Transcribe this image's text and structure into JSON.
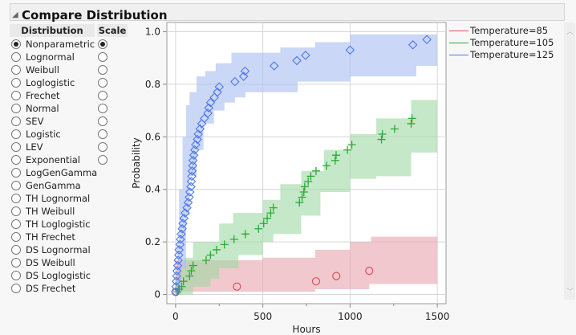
{
  "title": "Compare Distribution",
  "table": {
    "headers": [
      "Distribution",
      "Scale"
    ],
    "rows": [
      {
        "label": "Nonparametric",
        "selected": true,
        "scale": true,
        "scale_selected": true
      },
      {
        "label": "Lognormal",
        "selected": false,
        "scale": true,
        "scale_selected": false
      },
      {
        "label": "Weibull",
        "selected": false,
        "scale": true,
        "scale_selected": false
      },
      {
        "label": "Loglogistic",
        "selected": false,
        "scale": true,
        "scale_selected": false
      },
      {
        "label": "Frechet",
        "selected": false,
        "scale": true,
        "scale_selected": false
      },
      {
        "label": "Normal",
        "selected": false,
        "scale": true,
        "scale_selected": false
      },
      {
        "label": "SEV",
        "selected": false,
        "scale": true,
        "scale_selected": false
      },
      {
        "label": "Logistic",
        "selected": false,
        "scale": true,
        "scale_selected": false
      },
      {
        "label": "LEV",
        "selected": false,
        "scale": true,
        "scale_selected": false
      },
      {
        "label": "Exponential",
        "selected": false,
        "scale": true,
        "scale_selected": false
      },
      {
        "label": "LogGenGamma",
        "selected": false,
        "scale": false
      },
      {
        "label": "GenGamma",
        "selected": false,
        "scale": false
      },
      {
        "label": "TH Lognormal",
        "selected": false,
        "scale": false
      },
      {
        "label": "TH Weibull",
        "selected": false,
        "scale": false
      },
      {
        "label": "TH Loglogistic",
        "selected": false,
        "scale": false
      },
      {
        "label": "TH Frechet",
        "selected": false,
        "scale": false
      },
      {
        "label": "DS Lognormal",
        "selected": false,
        "scale": false
      },
      {
        "label": "DS Weibull",
        "selected": false,
        "scale": false
      },
      {
        "label": "DS Loglogistic",
        "selected": false,
        "scale": false
      },
      {
        "label": "DS Frechet",
        "selected": false,
        "scale": false
      }
    ]
  },
  "chart_data": {
    "type": "scatter",
    "xlabel": "Hours",
    "ylabel": "Probability",
    "xlim": [
      -50,
      1550
    ],
    "ylim": [
      -0.035,
      1.035
    ],
    "xticks": [
      0,
      500,
      1000,
      1500
    ],
    "yticks": [
      0,
      0.2,
      0.4,
      0.6,
      0.8,
      1.0
    ],
    "ytick_labels": [
      "0",
      "0.2",
      "0.4",
      "0.6",
      "0.8",
      "1.0"
    ],
    "grid": true,
    "legend": "right",
    "series": [
      {
        "name": "Temperature=85",
        "color": "#d9505f",
        "band_color": "#e8a3ab",
        "marker": "circle",
        "points": [
          [
            0,
            0.01
          ],
          [
            352,
            0.03
          ],
          [
            805,
            0.05
          ],
          [
            921,
            0.07
          ],
          [
            1110,
            0.09
          ]
        ],
        "upper": [
          [
            0,
            0.13
          ],
          [
            500,
            0.14
          ],
          [
            800,
            0.17
          ],
          [
            1000,
            0.2
          ],
          [
            1120,
            0.22
          ],
          [
            1500,
            0.22
          ]
        ],
        "lower": [
          [
            0,
            0
          ],
          [
            30,
            0.01
          ],
          [
            350,
            0.01
          ],
          [
            800,
            0.02
          ],
          [
            1110,
            0.04
          ],
          [
            1500,
            0.04
          ]
        ]
      },
      {
        "name": "Temperature=105",
        "color": "#2ea836",
        "band_color": "#9fd8a3",
        "marker": "plus",
        "points": [
          [
            10,
            0.01
          ],
          [
            20,
            0.02
          ],
          [
            35,
            0.03
          ],
          [
            45,
            0.05
          ],
          [
            80,
            0.07
          ],
          [
            90,
            0.09
          ],
          [
            100,
            0.11
          ],
          [
            175,
            0.13
          ],
          [
            200,
            0.15
          ],
          [
            235,
            0.17
          ],
          [
            280,
            0.19
          ],
          [
            335,
            0.21
          ],
          [
            400,
            0.23
          ],
          [
            475,
            0.25
          ],
          [
            505,
            0.27
          ],
          [
            525,
            0.29
          ],
          [
            545,
            0.31
          ],
          [
            560,
            0.33
          ],
          [
            710,
            0.35
          ],
          [
            725,
            0.37
          ],
          [
            735,
            0.39
          ],
          [
            740,
            0.41
          ],
          [
            760,
            0.43
          ],
          [
            775,
            0.45
          ],
          [
            805,
            0.47
          ],
          [
            865,
            0.49
          ],
          [
            915,
            0.51
          ],
          [
            920,
            0.53
          ],
          [
            985,
            0.55
          ],
          [
            1010,
            0.57
          ],
          [
            1180,
            0.59
          ],
          [
            1185,
            0.61
          ],
          [
            1255,
            0.63
          ],
          [
            1350,
            0.65
          ],
          [
            1355,
            0.67
          ]
        ],
        "upper": [
          [
            0,
            0.06
          ],
          [
            20,
            0.1
          ],
          [
            50,
            0.14
          ],
          [
            100,
            0.2
          ],
          [
            250,
            0.27
          ],
          [
            330,
            0.31
          ],
          [
            500,
            0.36
          ],
          [
            600,
            0.42
          ],
          [
            720,
            0.47
          ],
          [
            850,
            0.55
          ],
          [
            1000,
            0.61
          ],
          [
            1150,
            0.67
          ],
          [
            1350,
            0.74
          ],
          [
            1500,
            0.79
          ]
        ],
        "lower": [
          [
            0,
            0
          ],
          [
            100,
            0.03
          ],
          [
            200,
            0.06
          ],
          [
            250,
            0.1
          ],
          [
            360,
            0.15
          ],
          [
            500,
            0.2
          ],
          [
            560,
            0.23
          ],
          [
            720,
            0.3
          ],
          [
            830,
            0.39
          ],
          [
            1000,
            0.44
          ],
          [
            1150,
            0.45
          ],
          [
            1350,
            0.54
          ],
          [
            1500,
            0.54
          ]
        ]
      },
      {
        "name": "Temperature=125",
        "color": "#4f78e8",
        "band_color": "#a9bdf0",
        "marker": "diamond",
        "points": [
          [
            0,
            0.01
          ],
          [
            2,
            0.03
          ],
          [
            4,
            0.05
          ],
          [
            6,
            0.07
          ],
          [
            8,
            0.09
          ],
          [
            12,
            0.11
          ],
          [
            15,
            0.13
          ],
          [
            18,
            0.15
          ],
          [
            20,
            0.17
          ],
          [
            25,
            0.19
          ],
          [
            28,
            0.21
          ],
          [
            32,
            0.23
          ],
          [
            38,
            0.25
          ],
          [
            42,
            0.27
          ],
          [
            48,
            0.29
          ],
          [
            55,
            0.31
          ],
          [
            65,
            0.33
          ],
          [
            72,
            0.35
          ],
          [
            78,
            0.37
          ],
          [
            82,
            0.39
          ],
          [
            88,
            0.41
          ],
          [
            90,
            0.43
          ],
          [
            93,
            0.45
          ],
          [
            95,
            0.47
          ],
          [
            98,
            0.49
          ],
          [
            100,
            0.51
          ],
          [
            105,
            0.53
          ],
          [
            110,
            0.55
          ],
          [
            115,
            0.57
          ],
          [
            125,
            0.59
          ],
          [
            130,
            0.61
          ],
          [
            140,
            0.63
          ],
          [
            150,
            0.65
          ],
          [
            165,
            0.67
          ],
          [
            185,
            0.69
          ],
          [
            190,
            0.71
          ],
          [
            200,
            0.73
          ],
          [
            222,
            0.75
          ],
          [
            240,
            0.77
          ],
          [
            250,
            0.79
          ],
          [
            340,
            0.81
          ],
          [
            390,
            0.83
          ],
          [
            398,
            0.85
          ],
          [
            565,
            0.87
          ],
          [
            695,
            0.89
          ],
          [
            745,
            0.91
          ],
          [
            1000,
            0.93
          ],
          [
            1360,
            0.95
          ],
          [
            1440,
            0.97
          ]
        ],
        "upper": [
          [
            0,
            0.05
          ],
          [
            10,
            0.2
          ],
          [
            20,
            0.4
          ],
          [
            40,
            0.6
          ],
          [
            60,
            0.72
          ],
          [
            80,
            0.77
          ],
          [
            120,
            0.83
          ],
          [
            170,
            0.85
          ],
          [
            230,
            0.88
          ],
          [
            320,
            0.92
          ],
          [
            600,
            0.94
          ],
          [
            800,
            0.96
          ],
          [
            1000,
            0.99
          ],
          [
            1500,
            1.0
          ]
        ],
        "lower": [
          [
            0,
            0
          ],
          [
            30,
            0.1
          ],
          [
            60,
            0.3
          ],
          [
            80,
            0.45
          ],
          [
            120,
            0.55
          ],
          [
            160,
            0.65
          ],
          [
            220,
            0.7
          ],
          [
            280,
            0.73
          ],
          [
            340,
            0.75
          ],
          [
            400,
            0.77
          ],
          [
            700,
            0.81
          ],
          [
            1000,
            0.83
          ],
          [
            1380,
            0.87
          ],
          [
            1500,
            0.87
          ]
        ]
      }
    ]
  }
}
